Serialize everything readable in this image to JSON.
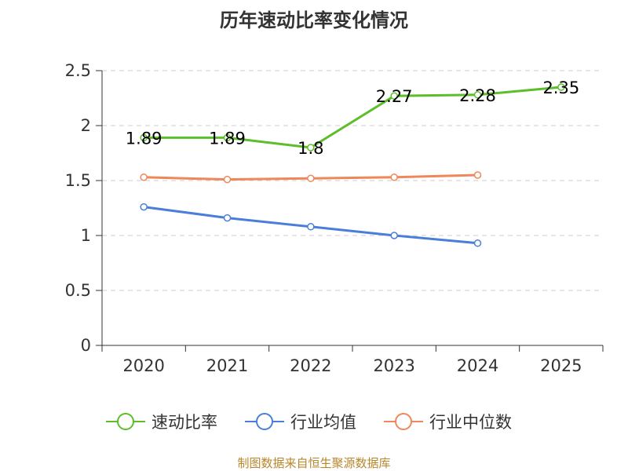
{
  "chart_data": {
    "type": "line",
    "title": "历年速动比率变化情况",
    "categories": [
      "2020",
      "2021",
      "2022",
      "2023",
      "2024",
      "2025"
    ],
    "y_ticks": [
      "0",
      "0.5",
      "1",
      "1.5",
      "2",
      "2.5"
    ],
    "ylim": [
      0,
      2.5
    ],
    "grid": true,
    "legend_position": "bottom",
    "series": [
      {
        "name": "速动比率",
        "color": "#5cbe2a",
        "values": [
          1.89,
          1.89,
          1.8,
          2.27,
          2.28,
          2.35
        ],
        "labels": [
          "1.89",
          "1.89",
          "1.8",
          "2.27",
          "2.28",
          "2.35"
        ]
      },
      {
        "name": "行业均值",
        "color": "#4a7fd9",
        "values": [
          1.26,
          1.16,
          1.08,
          1.0,
          0.93,
          null
        ]
      },
      {
        "name": "行业中位数",
        "color": "#f0875a",
        "values": [
          1.53,
          1.51,
          1.52,
          1.53,
          1.55,
          null
        ]
      }
    ],
    "source": "制图数据来自恒生聚源数据库"
  }
}
